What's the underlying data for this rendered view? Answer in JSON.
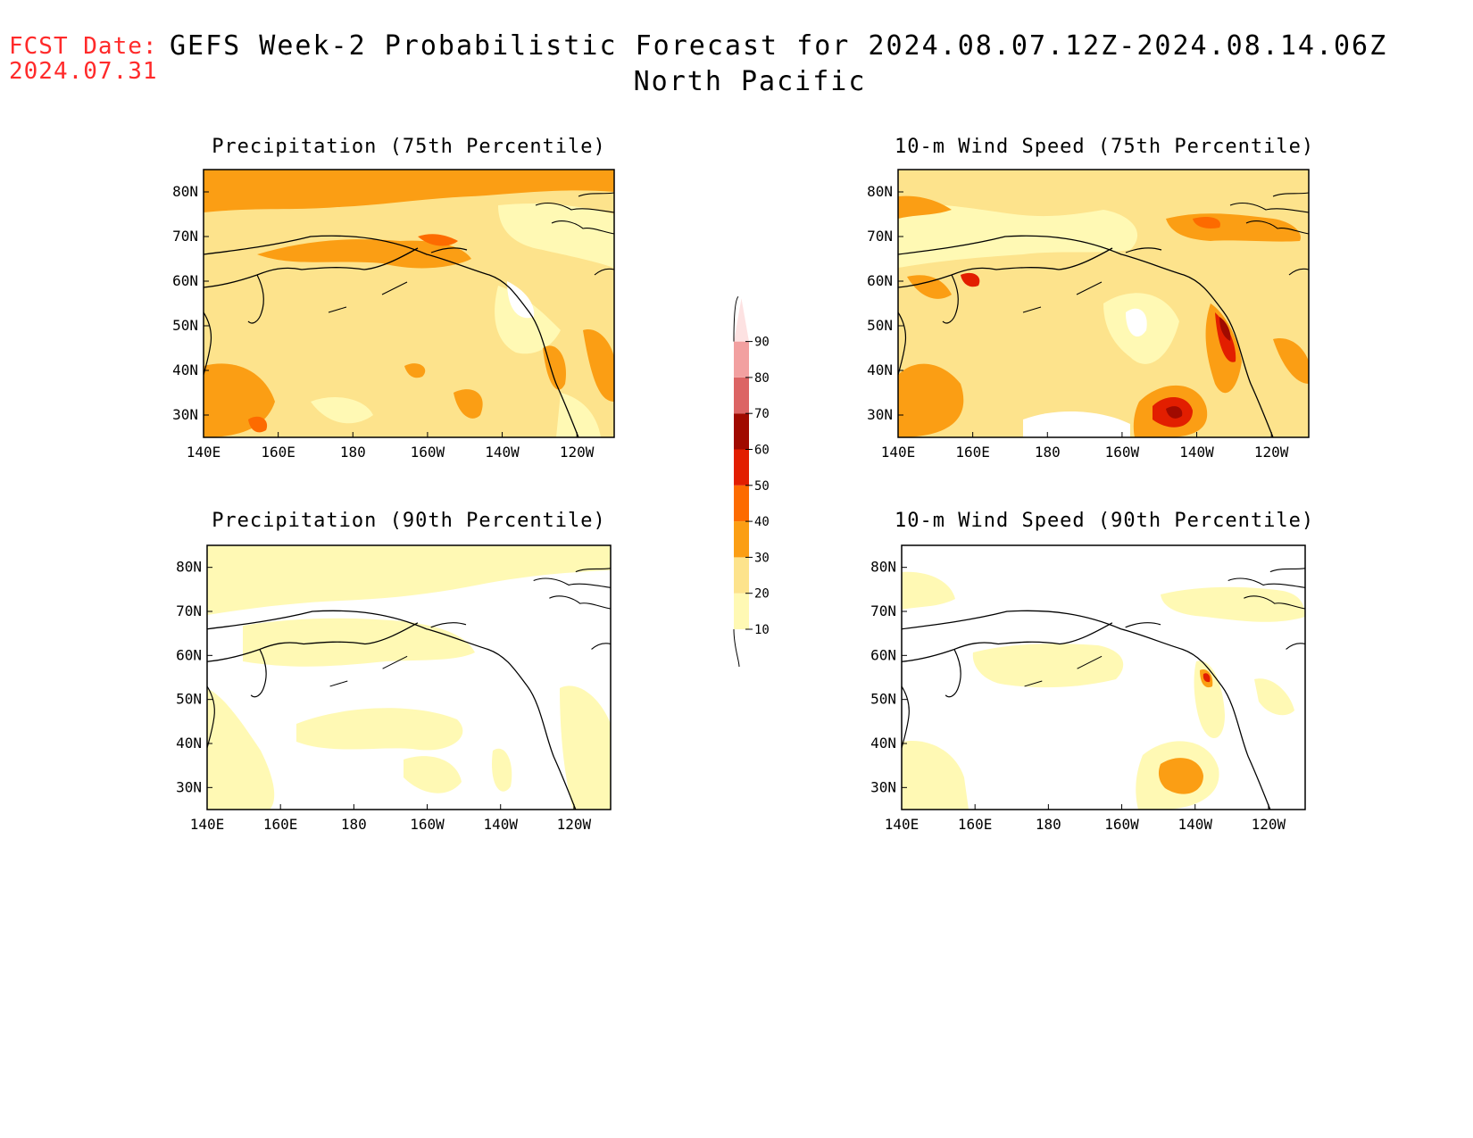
{
  "header": {
    "fcst_label": "FCST Date:",
    "fcst_date": "2024.07.31",
    "title_line1": "GEFS Week-2 Probabilistic Forecast for 2024.08.07.12Z-2024.08.14.06Z",
    "title_line2": "North Pacific"
  },
  "panels": [
    {
      "id": "precip75",
      "title": "Precipitation (75th Percentile)"
    },
    {
      "id": "wind75",
      "title": "10-m Wind Speed (75th Percentile)"
    },
    {
      "id": "precip90",
      "title": "Precipitation (90th Percentile)"
    },
    {
      "id": "wind90",
      "title": "10-m Wind Speed (90th Percentile)"
    }
  ],
  "axes": {
    "lon_labels": [
      "140E",
      "160E",
      "180",
      "160W",
      "140W",
      "120W"
    ],
    "lat_labels": [
      "30N",
      "40N",
      "50N",
      "60N",
      "70N",
      "80N"
    ]
  },
  "colorbar": {
    "levels": [
      "10",
      "20",
      "30",
      "40",
      "50",
      "60",
      "70",
      "80",
      "90"
    ],
    "colors": [
      "#fff9b4",
      "#fde38c",
      "#fb9e14",
      "#fd6b00",
      "#e21e00",
      "#a00a00",
      "#dc6464",
      "#f2a0a0",
      "#fde2e2"
    ]
  }
}
